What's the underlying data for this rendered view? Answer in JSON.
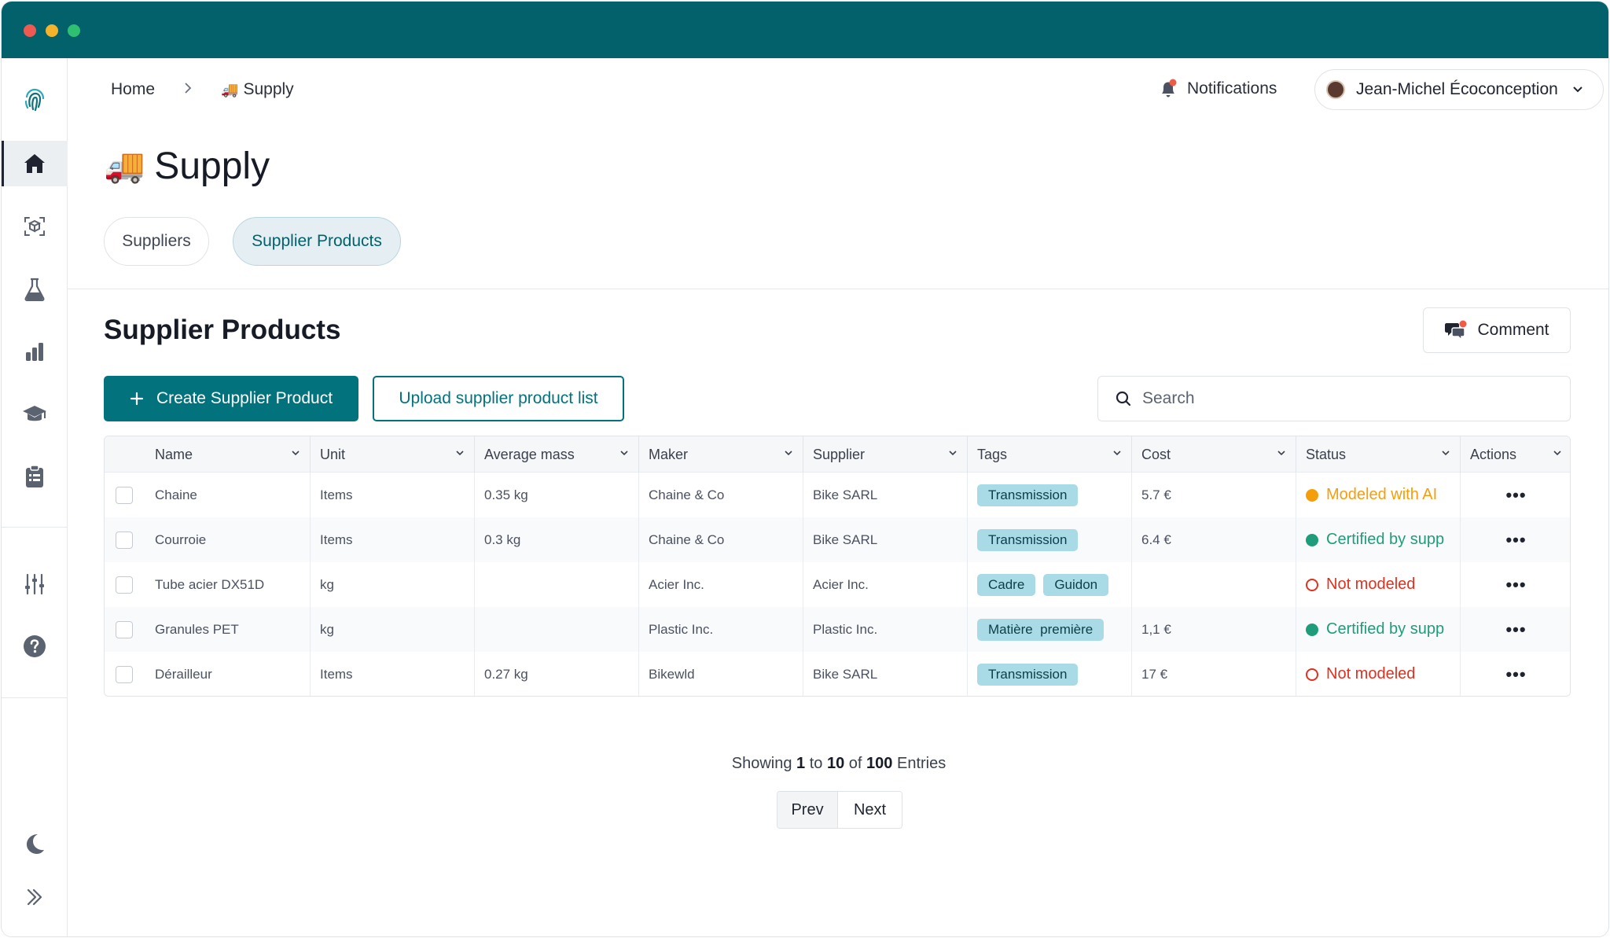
{
  "window": {
    "controls": [
      "close",
      "minimize",
      "maximize"
    ],
    "titlebar_color": "#02616b"
  },
  "sidebar": {
    "items": [
      {
        "name": "logo-fingerprint",
        "icon": "fingerprint-icon"
      },
      {
        "name": "home",
        "icon": "home-icon",
        "active": true
      },
      {
        "name": "models",
        "icon": "box-scan-icon"
      },
      {
        "name": "lab",
        "icon": "flask-icon"
      },
      {
        "name": "analytics",
        "icon": "bar-chart-icon"
      },
      {
        "name": "learning",
        "icon": "graduation-cap-icon"
      },
      {
        "name": "tasks",
        "icon": "clipboard-icon"
      },
      {
        "name": "settings",
        "icon": "sliders-icon"
      },
      {
        "name": "help",
        "icon": "help-icon"
      },
      {
        "name": "theme",
        "icon": "moon-icon"
      },
      {
        "name": "expand",
        "icon": "chevrons-right-icon"
      }
    ]
  },
  "header": {
    "breadcrumb": {
      "home": "Home",
      "current": "Supply",
      "current_emoji": "🚚"
    },
    "notifications_label": "Notifications",
    "user_name": "Jean-Michel Écoconception"
  },
  "page": {
    "title": "Supply",
    "title_emoji": "🚚",
    "tabs": [
      {
        "label": "Suppliers",
        "active": false
      },
      {
        "label": "Supplier Products",
        "active": true
      }
    ]
  },
  "section": {
    "title": "Supplier Products",
    "comment_label": "Comment",
    "create_label": "Create Supplier Product",
    "upload_label": "Upload supplier product list",
    "search_placeholder": "Search"
  },
  "table": {
    "columns": [
      "Name",
      "Unit",
      "Average mass",
      "Maker",
      "Supplier",
      "Tags",
      "Cost",
      "Status",
      "Actions"
    ],
    "rows": [
      {
        "name": "Chaine",
        "unit": "Items",
        "mass": "0.35 kg",
        "maker": "Chaine & Co",
        "supplier": "Bike SARL",
        "tags": [
          "Transmission"
        ],
        "cost": "5.7 €",
        "status": "Modeled with AI",
        "status_type": "ai"
      },
      {
        "name": "Courroie",
        "unit": "Items",
        "mass": "0.3 kg",
        "maker": "Chaine & Co",
        "supplier": "Bike SARL",
        "tags": [
          "Transmission"
        ],
        "cost": "6.4 €",
        "status": "Certified by supp",
        "status_type": "certified"
      },
      {
        "name": "Tube acier DX51D",
        "unit": "kg",
        "mass": "",
        "maker": "Acier Inc.",
        "supplier": "Acier Inc.",
        "tags": [
          "Cadre",
          "Guidon"
        ],
        "cost": "",
        "status": "Not modeled",
        "status_type": "none"
      },
      {
        "name": "Granules PET",
        "unit": "kg",
        "mass": "",
        "maker": "Plastic Inc.",
        "supplier": "Plastic Inc.",
        "tags": [
          "Matière  première"
        ],
        "cost": "1,1 €",
        "status": "Certified by supp",
        "status_type": "certified"
      },
      {
        "name": "Dérailleur",
        "unit": "Items",
        "mass": "0.27 kg",
        "maker": "Bikewld",
        "supplier": "Bike SARL",
        "tags": [
          "Transmission"
        ],
        "cost": "17 €",
        "status": "Not modeled",
        "status_type": "none"
      }
    ],
    "row_action": "•••"
  },
  "pagination": {
    "showing_prefix": "Showing",
    "from": "1",
    "to_word": "to",
    "to": "10",
    "of_word": "of",
    "total": "100",
    "entries_word": "Entries",
    "prev_label": "Prev",
    "next_label": "Next"
  },
  "colors": {
    "accent": "#02727c",
    "status_ai": "#f59e0b",
    "status_certified": "#1f9d7a",
    "status_none": "#e0311f",
    "tag_bg": "#a8dbe5"
  }
}
